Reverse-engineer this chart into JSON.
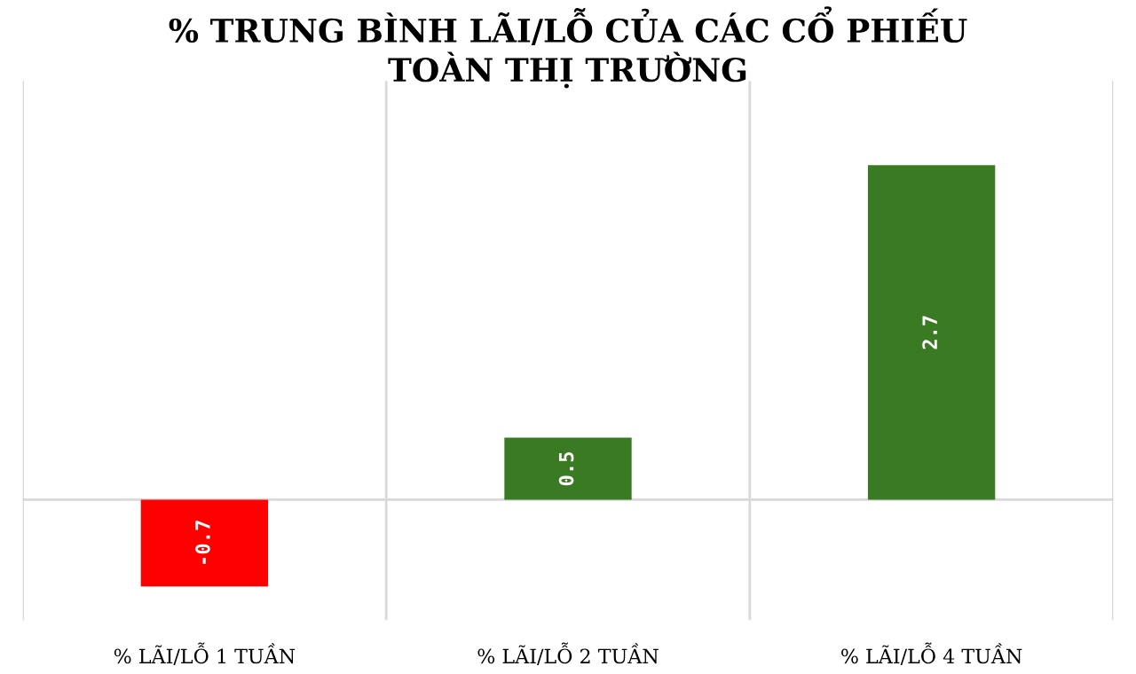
{
  "chart_data": {
    "type": "bar",
    "title": "% TRUNG BÌNH LÃI/LỖ CỦA CÁC CỔ PHIẾU\nTOÀN THỊ TRƯỜNG",
    "categories": [
      "% LÃI/LỖ 1 TUẦN",
      "% LÃI/LỖ 2 TUẦN",
      "% LÃI/LỖ 4 TUẦN"
    ],
    "values": [
      -0.7,
      0.5,
      2.7
    ],
    "colors": [
      "#ff0000",
      "#3a7a22",
      "#3a7a22"
    ],
    "data_labels": true,
    "grid": "x",
    "legend": false
  }
}
